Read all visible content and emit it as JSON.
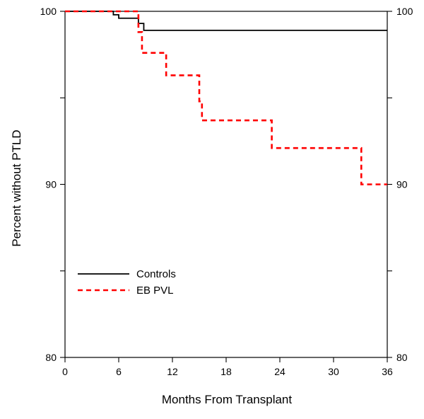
{
  "chart_data": {
    "type": "line",
    "step": true,
    "xlabel": "Months From Transplant",
    "ylabel": "Percent without PTLD",
    "xlim": [
      0,
      36
    ],
    "ylim": [
      80,
      100
    ],
    "xticks": [
      0,
      6,
      12,
      18,
      24,
      30,
      36
    ],
    "yticks_left": [
      80,
      90,
      100
    ],
    "yticks_right": [
      80,
      90,
      100
    ],
    "ymajor_ticks": [
      80,
      85,
      90,
      95,
      100
    ],
    "grid": false,
    "legend_position": "bottom-left",
    "series": [
      {
        "name": "Controls",
        "color": "#000000",
        "line_style": "solid",
        "points": [
          {
            "x": 0,
            "y": 100
          },
          {
            "x": 5.4,
            "y": 99.8
          },
          {
            "x": 6,
            "y": 99.6
          },
          {
            "x": 8.2,
            "y": 99.3
          },
          {
            "x": 8.8,
            "y": 98.9
          },
          {
            "x": 36,
            "y": 98.9
          }
        ]
      },
      {
        "name": "EB PVL",
        "color": "#ff0000",
        "line_style": "dashed",
        "points": [
          {
            "x": 0,
            "y": 100
          },
          {
            "x": 8.2,
            "y": 98.8
          },
          {
            "x": 8.6,
            "y": 97.6
          },
          {
            "x": 11.3,
            "y": 96.3
          },
          {
            "x": 15,
            "y": 94.8
          },
          {
            "x": 15.3,
            "y": 93.7
          },
          {
            "x": 23.1,
            "y": 92.1
          },
          {
            "x": 33.1,
            "y": 90
          },
          {
            "x": 36,
            "y": 90
          }
        ]
      }
    ]
  }
}
